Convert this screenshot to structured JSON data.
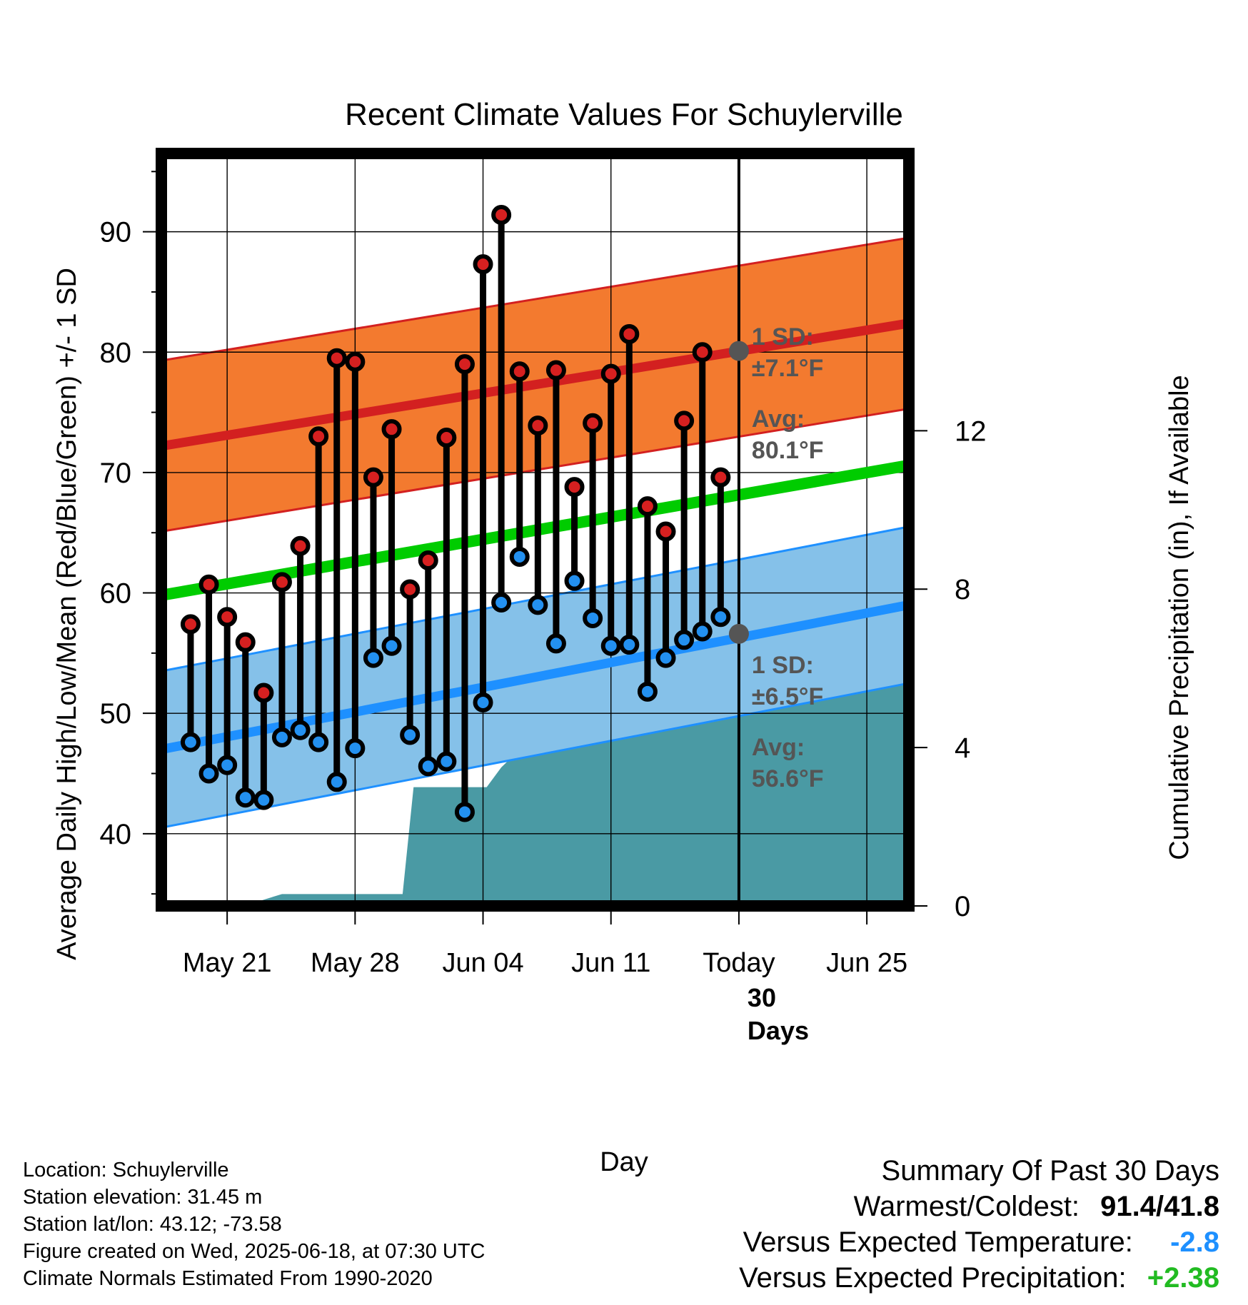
{
  "chart_data": {
    "type": "line",
    "title": "Recent Climate Values For Schuylerville",
    "xlabel": "Day",
    "ylabel": "Average Daily High/Low/Mean (Red/Blue/Green) +/- 1 SD",
    "y2label": "Cumulative Precipitation (in), If Available",
    "x_ticks": [
      "May 21",
      "May 28",
      "Jun 04",
      "Jun 11",
      "Today",
      "Jun 25"
    ],
    "x_tick_days": [
      3,
      10,
      17,
      24,
      31,
      38
    ],
    "xlim": [
      -0.6,
      40.3
    ],
    "ylim": [
      34,
      96.5
    ],
    "y_ticks": [
      "40",
      "50",
      "60",
      "70",
      "80",
      "90"
    ],
    "y2lim": [
      0,
      19
    ],
    "y2_ticks": [
      "0",
      "4",
      "8",
      "12"
    ],
    "grid": true,
    "today_day": 31,
    "today_label": "30\nDays",
    "days": [
      1,
      2,
      3,
      4,
      5,
      6,
      7,
      8,
      9,
      10,
      11,
      12,
      13,
      14,
      15,
      16,
      17,
      18,
      19,
      20,
      21,
      22,
      23,
      24,
      25,
      26,
      27,
      28,
      29,
      30
    ],
    "highs": [
      57.4,
      60.7,
      58.0,
      55.9,
      51.7,
      60.9,
      63.9,
      73.0,
      79.5,
      79.2,
      69.6,
      73.6,
      60.3,
      62.7,
      72.9,
      79.0,
      87.3,
      91.4,
      78.4,
      73.9,
      78.5,
      68.8,
      74.1,
      78.2,
      81.5,
      67.2,
      65.1,
      74.3,
      80.0,
      69.6
    ],
    "lows": [
      47.6,
      45.0,
      45.7,
      43.0,
      42.8,
      48.0,
      48.6,
      47.6,
      44.3,
      47.1,
      54.6,
      55.6,
      48.2,
      45.6,
      46.0,
      41.8,
      50.9,
      59.2,
      63.0,
      59.0,
      55.8,
      61.0,
      57.9,
      55.6,
      55.7,
      51.8,
      54.6,
      56.1,
      56.8,
      58.0
    ],
    "normal_high": {
      "x": [
        -0.6,
        40.3
      ],
      "y": [
        72.2,
        82.4
      ],
      "sd": 7.1
    },
    "normal_low": {
      "x": [
        -0.6,
        40.3
      ],
      "y": [
        47.0,
        59.0
      ],
      "sd": 6.5
    },
    "normal_mean": {
      "x": [
        -0.6,
        40.3
      ],
      "y": [
        59.8,
        70.6
      ]
    },
    "precip": {
      "x": [
        -0.6,
        3.6,
        4.6,
        6.0,
        9.6,
        11.6,
        12.6,
        13.2,
        15.0,
        16.6,
        17.2,
        18.0,
        18.9,
        19.9,
        21.2,
        22.9,
        23.8,
        25.0,
        26.2,
        27.2,
        28.1,
        29.4,
        30.0,
        40.3
      ],
      "y": [
        0,
        0,
        0.1,
        0.3,
        0.3,
        0.3,
        0.3,
        3.0,
        3.0,
        3.0,
        3.0,
        3.5,
        3.9,
        5.5,
        5.5,
        5.9,
        6.2,
        6.2,
        6.2,
        6.3,
        6.3,
        6.3,
        6.4,
        6.4
      ]
    },
    "annotations": {
      "high_sd": "1 SD:",
      "high_sd_val": "±7.1°F",
      "high_avg": "Avg:",
      "high_avg_val": "80.1°F",
      "low_sd": "1 SD:",
      "low_sd_val": "±6.5°F",
      "low_avg": "Avg:",
      "low_avg_val": "56.6°F"
    },
    "today_high_avg": 80.1,
    "today_low_avg": 56.6,
    "colors": {
      "high_band": "#f37a2f",
      "high_line": "#d32020",
      "low_band": "#85c1e9",
      "low_line": "#1e90ff",
      "mean_line": "#00cc00",
      "precip": "#4a9aa4",
      "high_dot": "#d62020",
      "low_dot": "#2390f0",
      "annotation": "#555555"
    }
  },
  "info": {
    "location": "Location: Schuylerville",
    "elevation": "Station elevation: 31.45 m",
    "latlon": "Station lat/lon: 43.12; -73.58",
    "created": "Figure created on Wed, 2025-06-18, at 07:30 UTC",
    "normals": "Climate Normals Estimated From 1990-2020"
  },
  "summary": {
    "title": "Summary Of Past 30 Days",
    "warm_cold_label": "Warmest/Coldest:",
    "warm_cold_value": "91.4/41.8",
    "temp_label": "Versus Expected Temperature:",
    "temp_value": "-2.8",
    "temp_color": "#1e90ff",
    "precip_label": "Versus Expected Precipitation:",
    "precip_value": "+2.38",
    "precip_color": "#22bb22"
  }
}
